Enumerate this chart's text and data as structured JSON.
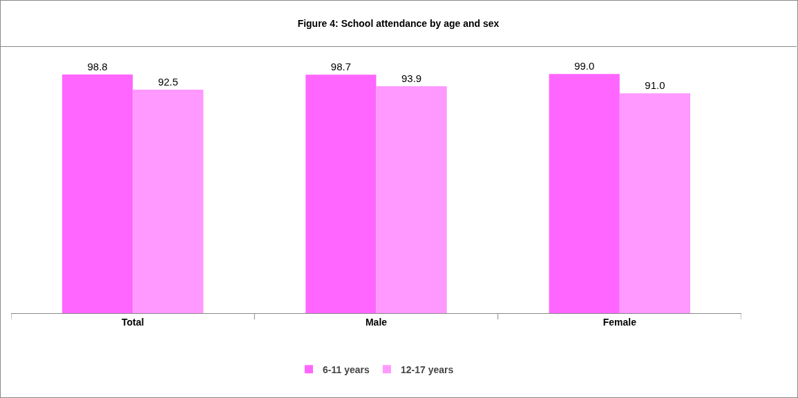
{
  "chart_data": {
    "type": "bar",
    "title": "Figure 4: School attendance by age and sex",
    "categories": [
      "Total",
      "Male",
      "Female"
    ],
    "series": [
      {
        "name": "6-11 years",
        "color": "#ff66ff",
        "values": [
          98.8,
          98.7,
          99.0
        ],
        "value_labels": [
          "98.8",
          "98.7",
          "99.0"
        ]
      },
      {
        "name": "12-17 years",
        "color": "#ff99ff",
        "values": [
          92.5,
          93.9,
          91.0
        ],
        "value_labels": [
          "92.5",
          "93.9",
          "91.0"
        ]
      }
    ],
    "legend": "bottom"
  }
}
